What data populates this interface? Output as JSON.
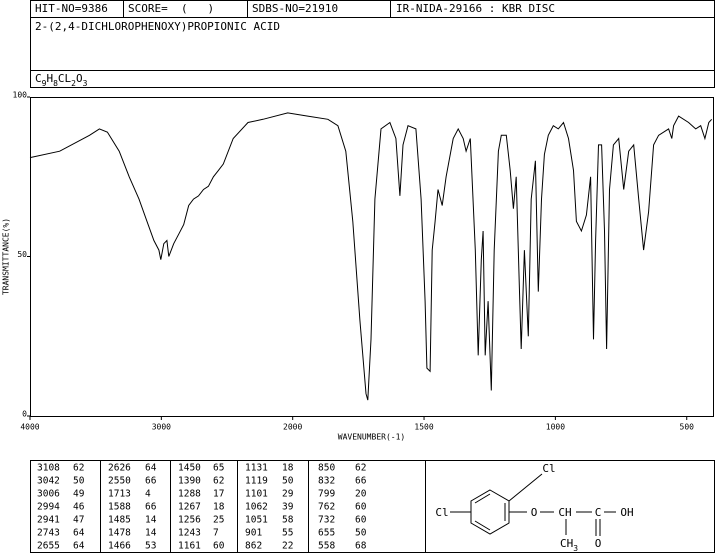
{
  "header": {
    "hit": "HIT-NO=9386",
    "score": "SCORE=  (   )",
    "sdbs": "SDBS-NO=21910",
    "method": "IR-NIDA-29166 : KBR DISC",
    "name": "2-(2,4-DICHLOROPHENOXY)PROPIONIC ACID",
    "formula": "C9H8CL2O3"
  },
  "chart_data": {
    "type": "line",
    "xlabel": "WAVENUMBER(-1)",
    "ylabel": "TRANSMITTANCE(%)",
    "xlim": [
      4000,
      400
    ],
    "x_break": 2000,
    "xticks": [
      4000,
      3000,
      2000,
      1500,
      1000,
      500
    ],
    "ylim": [
      0,
      100
    ],
    "yticks": [
      0,
      50,
      100
    ],
    "color": "#000000",
    "x": [
      4000,
      3774,
      3547,
      3472,
      3411,
      3321,
      3245,
      3170,
      3109,
      3057,
      3019,
      3004,
      2981,
      2958,
      2943,
      2906,
      2868,
      2830,
      2792,
      2755,
      2717,
      2679,
      2642,
      2604,
      2566,
      2528,
      2453,
      2340,
      2226,
      2038,
      1943,
      1866,
      1828,
      1798,
      1771,
      1744,
      1721,
      1714,
      1702,
      1687,
      1664,
      1630,
      1607,
      1592,
      1580,
      1561,
      1531,
      1511,
      1496,
      1489,
      1477,
      1469,
      1458,
      1447,
      1431,
      1416,
      1389,
      1370,
      1351,
      1340,
      1324,
      1305,
      1294,
      1282,
      1275,
      1267,
      1256,
      1244,
      1233,
      1217,
      1206,
      1187,
      1172,
      1160,
      1149,
      1137,
      1130,
      1118,
      1103,
      1092,
      1076,
      1065,
      1053,
      1042,
      1027,
      1008,
      989,
      969,
      950,
      931,
      920,
      901,
      882,
      866,
      855,
      847,
      836,
      824,
      813,
      805,
      794,
      779,
      759,
      740,
      721,
      702,
      683,
      664,
      645,
      626,
      607,
      569,
      557,
      550,
      531,
      493,
      466,
      447,
      431,
      416,
      405
    ],
    "values": [
      81,
      83,
      88,
      90,
      89,
      83,
      75,
      68,
      61,
      55,
      52,
      49,
      54,
      55,
      50,
      54,
      57,
      60,
      66,
      68,
      69,
      71,
      72,
      75,
      77,
      79,
      87,
      92,
      93,
      95,
      94,
      93,
      91,
      83,
      61,
      30,
      7,
      5,
      24,
      68,
      90,
      92,
      87,
      69,
      85,
      91,
      90,
      68,
      36,
      15,
      14,
      52,
      61,
      71,
      66,
      75,
      87,
      90,
      87,
      83,
      87,
      52,
      19,
      49,
      58,
      19,
      36,
      8,
      52,
      83,
      88,
      88,
      77,
      65,
      75,
      40,
      21,
      52,
      25,
      68,
      80,
      39,
      68,
      82,
      88,
      91,
      90,
      92,
      87,
      77,
      61,
      58,
      63,
      75,
      24,
      55,
      85,
      85,
      58,
      21,
      71,
      85,
      87,
      71,
      83,
      85,
      68,
      52,
      64,
      85,
      88,
      90,
      87,
      91,
      94,
      92,
      90,
      91,
      87,
      92,
      93
    ]
  },
  "peaks": [
    [
      [
        3108,
        62
      ],
      [
        3042,
        50
      ],
      [
        3006,
        49
      ],
      [
        2994,
        46
      ],
      [
        2941,
        47
      ],
      [
        2743,
        64
      ],
      [
        2655,
        64
      ]
    ],
    [
      [
        2626,
        64
      ],
      [
        2550,
        66
      ],
      [
        1713,
        4
      ],
      [
        1588,
        66
      ],
      [
        1485,
        14
      ],
      [
        1478,
        14
      ],
      [
        1466,
        53
      ]
    ],
    [
      [
        1450,
        65
      ],
      [
        1390,
        62
      ],
      [
        1288,
        17
      ],
      [
        1267,
        18
      ],
      [
        1256,
        25
      ],
      [
        1243,
        7
      ],
      [
        1161,
        60
      ]
    ],
    [
      [
        1131,
        18
      ],
      [
        1119,
        50
      ],
      [
        1101,
        29
      ],
      [
        1062,
        39
      ],
      [
        1051,
        58
      ],
      [
        901,
        55
      ],
      [
        862,
        22
      ]
    ],
    [
      [
        850,
        62
      ],
      [
        832,
        66
      ],
      [
        799,
        20
      ],
      [
        762,
        60
      ],
      [
        732,
        60
      ],
      [
        655,
        50
      ],
      [
        558,
        68
      ]
    ]
  ],
  "structure": {
    "cl_top": "Cl",
    "cl_left": "Cl",
    "ether_o": "O",
    "ch": "CH",
    "c": "C",
    "oh": "OH",
    "ch3": "CH3",
    "carbonyl_o": "O"
  }
}
